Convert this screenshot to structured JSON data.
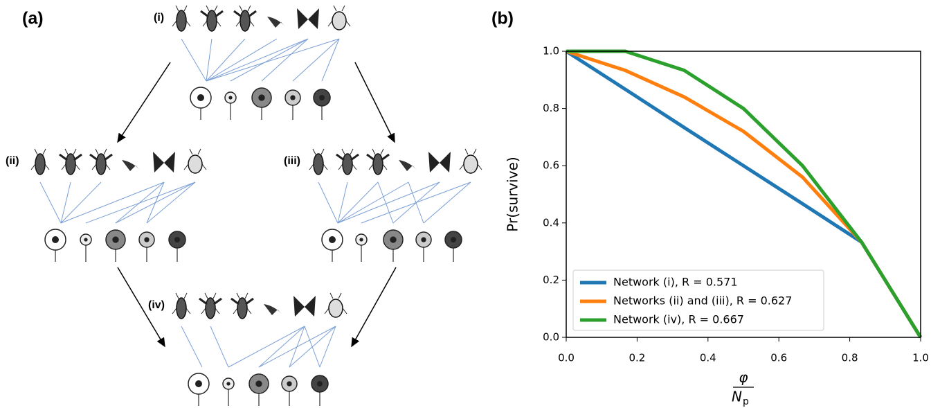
{
  "panel_a": {
    "label": "(a)",
    "networks": [
      "(i)",
      "(ii)",
      "(iii)",
      "(iv)"
    ]
  },
  "panel_b": {
    "label": "(b)"
  },
  "chart_data": {
    "type": "line",
    "ylabel": "Pr(survive)",
    "xlabel_numerator": "φ",
    "xlabel_denominator": "N",
    "xlabel_denominator_subscript": "p",
    "x": [
      0,
      0.1667,
      0.3333,
      0.5,
      0.6667,
      0.8333,
      1
    ],
    "series": [
      {
        "name": "Network (i), R = 0.571",
        "color": "#1f77b4",
        "values": [
          1,
          0.867,
          0.733,
          0.6,
          0.467,
          0.333,
          0
        ]
      },
      {
        "name": "Networks (ii) and (iii), R = 0.627",
        "color": "#ff7f0e",
        "values": [
          1,
          0.933,
          0.84,
          0.72,
          0.56,
          0.333,
          0
        ]
      },
      {
        "name": "Network (iv), R = 0.667",
        "color": "#2ca02c",
        "values": [
          1,
          1,
          0.933,
          0.8,
          0.6,
          0.333,
          0
        ]
      }
    ],
    "xlim": [
      0,
      1
    ],
    "ylim": [
      0,
      1
    ],
    "xticks": [
      {
        "value": 0,
        "label": "0.0"
      },
      {
        "value": 0.2,
        "label": "0.2"
      },
      {
        "value": 0.4,
        "label": "0.4"
      },
      {
        "value": 0.6,
        "label": "0.6"
      },
      {
        "value": 0.8,
        "label": "0.8"
      },
      {
        "value": 1,
        "label": "1.0"
      }
    ],
    "yticks": [
      {
        "value": 0,
        "label": "0.0"
      },
      {
        "value": 0.2,
        "label": "0.2"
      },
      {
        "value": 0.4,
        "label": "0.4"
      },
      {
        "value": 0.6,
        "label": "0.6"
      },
      {
        "value": 0.8,
        "label": "0.8"
      },
      {
        "value": 1,
        "label": "1.0"
      }
    ],
    "grid": false,
    "legend": "lower left"
  }
}
